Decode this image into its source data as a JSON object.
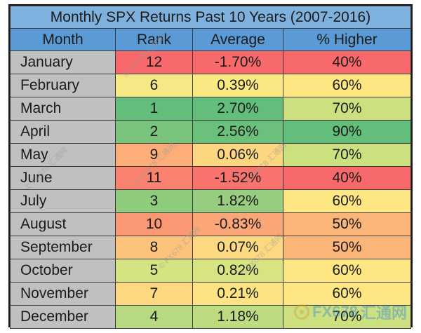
{
  "title": "Monthly SPX Returns Past 10 Years (2007-2016)",
  "columns": [
    "Month",
    "Rank",
    "Average",
    "% Higher"
  ],
  "rows": [
    {
      "month": "January",
      "rank": "12",
      "average": "-1.70%",
      "higher": "40%",
      "rank_color": "#f8696b",
      "avg_color": "#f8696b",
      "higher_color": "#f8696b"
    },
    {
      "month": "February",
      "rank": "6",
      "average": "0.39%",
      "higher": "60%",
      "rank_color": "#f6e884",
      "avg_color": "#fae883",
      "higher_color": "#fee783"
    },
    {
      "month": "March",
      "rank": "1",
      "average": "2.70%",
      "higher": "70%",
      "rank_color": "#63be7b",
      "avg_color": "#63be7b",
      "higher_color": "#cde07f"
    },
    {
      "month": "April",
      "rank": "2",
      "average": "2.56%",
      "higher": "90%",
      "rank_color": "#78c47c",
      "avg_color": "#6bc17b",
      "higher_color": "#63be7b"
    },
    {
      "month": "May",
      "rank": "9",
      "average": "0.06%",
      "higher": "70%",
      "rank_color": "#fcad78",
      "avg_color": "#fdd680",
      "higher_color": "#cde07f"
    },
    {
      "month": "June",
      "rank": "11",
      "average": "-1.52%",
      "higher": "40%",
      "rank_color": "#f98370",
      "avg_color": "#f8736d",
      "higher_color": "#f8696b"
    },
    {
      "month": "July",
      "rank": "3",
      "average": "1.82%",
      "higher": "60%",
      "rank_color": "#8fcb7d",
      "avg_color": "#97cd7e",
      "higher_color": "#fee783"
    },
    {
      "month": "August",
      "rank": "10",
      "average": "-0.83%",
      "higher": "50%",
      "rank_color": "#fa9874",
      "avg_color": "#faa676",
      "higher_color": "#fcb579"
    },
    {
      "month": "September",
      "rank": "8",
      "average": "0.07%",
      "higher": "50%",
      "rank_color": "#fdc27c",
      "avg_color": "#fdd981",
      "higher_color": "#fcb579"
    },
    {
      "month": "October",
      "rank": "5",
      "average": "0.82%",
      "higher": "60%",
      "rank_color": "#d6e382",
      "avg_color": "#d8e382",
      "higher_color": "#fee783"
    },
    {
      "month": "November",
      "rank": "7",
      "average": "0.21%",
      "higher": "60%",
      "rank_color": "#fed881",
      "avg_color": "#fee382",
      "higher_color": "#fee783"
    },
    {
      "month": "December",
      "rank": "4",
      "average": "1.18%",
      "higher": "70%",
      "rank_color": "#b6d981",
      "avg_color": "#bddb80",
      "higher_color": "#cde07f"
    }
  ],
  "colors": {
    "title_bg": "#7eb1dd",
    "header_bg": "#5b9bd5",
    "month_bg": "#c0c0c0"
  },
  "watermarks": [
    "© FX678 汇通网",
    "© FX678 汇通网",
    "© FX678 汇通网",
    "© FX678 汇通网",
    "© FX678 汇通网",
    "© FX678 汇通网"
  ],
  "logo": {
    "brand": "FX678",
    "cn": "汇通网"
  }
}
